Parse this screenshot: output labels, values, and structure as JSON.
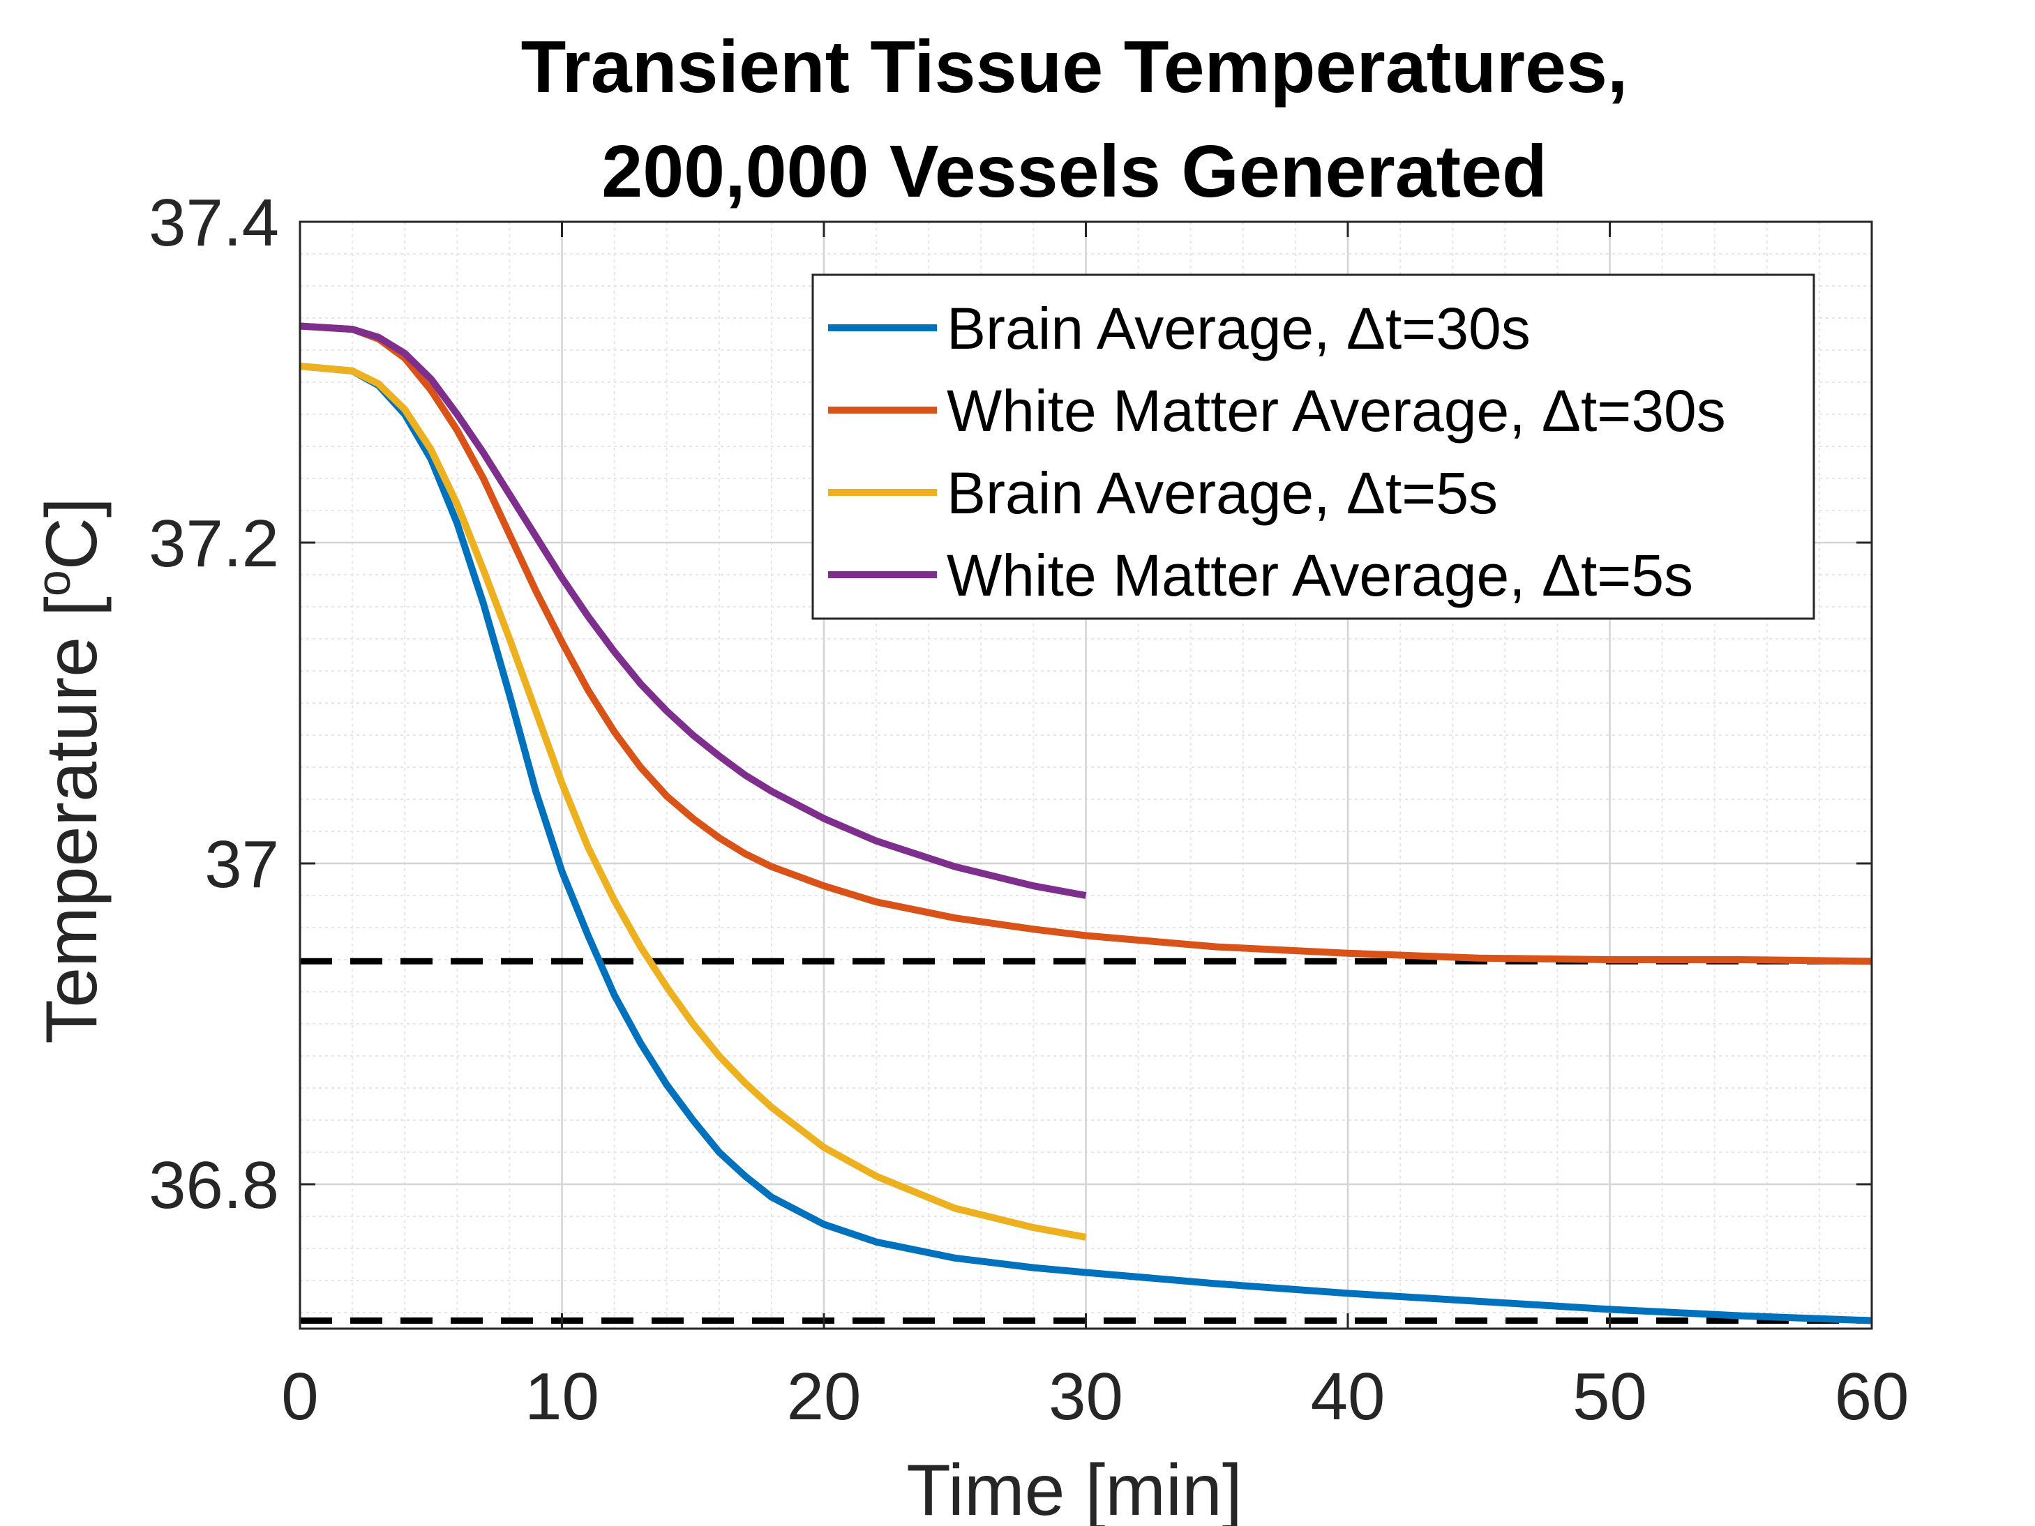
{
  "chart_data": {
    "type": "line",
    "title": "Transient Tissue Temperatures,",
    "subtitle": "200,000 Vessels Generated",
    "xlabel": "Time [min]",
    "ylabel_main": "Temperature [",
    "ylabel_sup": "o",
    "ylabel_end": "C]",
    "xlim": [
      0,
      60
    ],
    "ylim": [
      36.71,
      37.4
    ],
    "x_ticks": [
      0,
      10,
      20,
      30,
      40,
      50,
      60
    ],
    "x_tick_labels": [
      "0",
      "10",
      "20",
      "30",
      "40",
      "50",
      "60"
    ],
    "y_ticks": [
      36.8,
      37.0,
      37.2,
      37.4
    ],
    "y_tick_labels": [
      "36.8",
      "37",
      "37.2",
      "37.4"
    ],
    "grid": true,
    "minor_grid": true,
    "legend_position": "top-right",
    "series": [
      {
        "name": "Brain Average, Δt=30s",
        "color": "#0072BD",
        "x": [
          0,
          2,
          3,
          4,
          5,
          6,
          7,
          8,
          9,
          10,
          11,
          12,
          13,
          14,
          15,
          16,
          17,
          18,
          20,
          22,
          25,
          28,
          30,
          35,
          40,
          45,
          50,
          55,
          60
        ],
        "y": [
          37.31,
          37.307,
          37.298,
          37.28,
          37.252,
          37.212,
          37.162,
          37.105,
          37.045,
          36.995,
          36.955,
          36.918,
          36.888,
          36.862,
          36.84,
          36.82,
          36.805,
          36.792,
          36.775,
          36.764,
          36.754,
          36.748,
          36.745,
          36.738,
          36.732,
          36.727,
          36.722,
          36.718,
          36.715
        ]
      },
      {
        "name": "White Matter Average, Δt=30s",
        "color": "#D95319",
        "x": [
          0,
          2,
          3,
          4,
          5,
          6,
          7,
          8,
          9,
          10,
          11,
          12,
          13,
          14,
          15,
          16,
          17,
          18,
          20,
          22,
          25,
          28,
          30,
          35,
          40,
          45,
          50,
          55,
          60
        ],
        "y": [
          37.335,
          37.333,
          37.327,
          37.315,
          37.295,
          37.27,
          37.24,
          37.205,
          37.17,
          37.138,
          37.108,
          37.082,
          37.06,
          37.042,
          37.028,
          37.016,
          37.006,
          36.998,
          36.986,
          36.976,
          36.966,
          36.959,
          36.955,
          36.948,
          36.944,
          36.941,
          36.94,
          36.94,
          36.939
        ]
      },
      {
        "name": "Brain Average, Δt=5s",
        "color": "#EDB120",
        "x": [
          0,
          2,
          3,
          4,
          5,
          6,
          7,
          8,
          9,
          10,
          11,
          12,
          13,
          14,
          15,
          16,
          17,
          18,
          20,
          22,
          25,
          28,
          30
        ],
        "y": [
          37.31,
          37.307,
          37.299,
          37.283,
          37.258,
          37.224,
          37.183,
          37.14,
          37.095,
          37.05,
          37.01,
          36.977,
          36.948,
          36.923,
          36.9,
          36.88,
          36.863,
          36.848,
          36.823,
          36.805,
          36.785,
          36.773,
          36.767
        ]
      },
      {
        "name": "White Matter Average, Δt=5s",
        "color": "#7E2F8E",
        "x": [
          0,
          2,
          3,
          4,
          5,
          6,
          7,
          8,
          9,
          10,
          11,
          12,
          13,
          14,
          15,
          16,
          17,
          18,
          20,
          22,
          25,
          28,
          30
        ],
        "y": [
          37.335,
          37.333,
          37.328,
          37.318,
          37.302,
          37.28,
          37.256,
          37.23,
          37.204,
          37.178,
          37.154,
          37.132,
          37.112,
          37.095,
          37.08,
          37.067,
          37.055,
          37.045,
          37.028,
          37.014,
          36.998,
          36.986,
          36.98
        ]
      }
    ],
    "reference_lines": [
      {
        "y": 36.939,
        "style": "dashed",
        "color": "#000000"
      },
      {
        "y": 36.715,
        "style": "dashed",
        "color": "#000000"
      }
    ]
  }
}
